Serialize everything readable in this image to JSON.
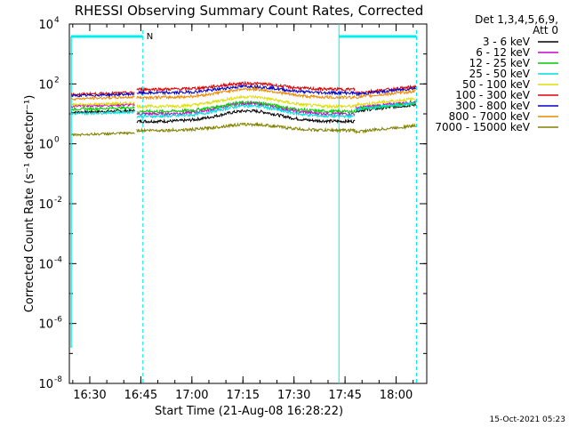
{
  "chart_data": {
    "type": "line",
    "title": "RHESSI Observing Summary Count Rates, Corrected",
    "xlabel": "Start Time (21-Aug-08 16:28:22)",
    "ylabel": "Corrected Count Rate (s⁻¹ detector⁻¹)",
    "yscale": "log",
    "ylim": [
      1e-08,
      10000.0
    ],
    "xlim_minutes": [
      16.4,
      18.15
    ],
    "x_ticks": [
      {
        "label": "16:30",
        "value": 16.5
      },
      {
        "label": "16:45",
        "value": 16.75
      },
      {
        "label": "17:00",
        "value": 17.0
      },
      {
        "label": "17:15",
        "value": 17.25
      },
      {
        "label": "17:30",
        "value": 17.5
      },
      {
        "label": "17:45",
        "value": 17.75
      },
      {
        "label": "18:00",
        "value": 18.0
      }
    ],
    "y_ticks": [
      {
        "mant": "10",
        "exp": "4",
        "value": 4
      },
      {
        "mant": "10",
        "exp": "2",
        "value": 2
      },
      {
        "mant": "10",
        "exp": "0",
        "value": 0
      },
      {
        "mant": "10",
        "exp": "-2",
        "value": -2
      },
      {
        "mant": "10",
        "exp": "-4",
        "value": -4
      },
      {
        "mant": "10",
        "exp": "-6",
        "value": -6
      },
      {
        "mant": "10",
        "exp": "-8",
        "value": -8
      }
    ],
    "legend_title": [
      "Det 1,3,4,5,6,9,",
      "Att 0"
    ],
    "legend_position": "top-right",
    "series": [
      {
        "name": "3 - 6 keV",
        "color": "#000000",
        "base": 0.75,
        "peak": 0.35,
        "level": [
          1.05,
          1.1
        ]
      },
      {
        "name": "6 - 12 keV",
        "color": "#cc00cc",
        "base": 1.0,
        "peak": 0.35,
        "level": [
          1.25,
          1.2
        ]
      },
      {
        "name": "12 - 25 keV",
        "color": "#00cc00",
        "base": 1.08,
        "peak": 0.3,
        "level": [
          1.15,
          1.15
        ]
      },
      {
        "name": "25 - 50 keV",
        "color": "#00dddd",
        "base": 0.92,
        "peak": 0.35,
        "level": [
          1.0,
          1.15
        ]
      },
      {
        "name": "50 - 100 keV",
        "color": "#dddd00",
        "base": 1.25,
        "peak": 0.32,
        "level": [
          1.3,
          1.3
        ]
      },
      {
        "name": "100 - 300 keV",
        "color": "#dd0000",
        "base": 1.82,
        "peak": 0.2,
        "level": [
          1.65,
          1.7
        ]
      },
      {
        "name": "300 - 800 keV",
        "color": "#0000cc",
        "base": 1.7,
        "peak": 0.22,
        "level": [
          1.6,
          1.65
        ]
      },
      {
        "name": "800 - 7000 keV",
        "color": "#ee8800",
        "base": 1.55,
        "peak": 0.28,
        "level": [
          1.5,
          1.55
        ]
      },
      {
        "name": "7000 - 15000 keV",
        "color": "#808000",
        "base": 0.45,
        "peak": 0.2,
        "level": [
          0.3,
          0.4
        ]
      }
    ],
    "night_markers": {
      "label": "N",
      "bar_color": "#00eeee",
      "intervals": [
        [
          16.4,
          16.76
        ],
        [
          17.72,
          18.1
        ]
      ]
    }
  },
  "footer": {
    "timestamp": "15-Oct-2021 05:23"
  }
}
